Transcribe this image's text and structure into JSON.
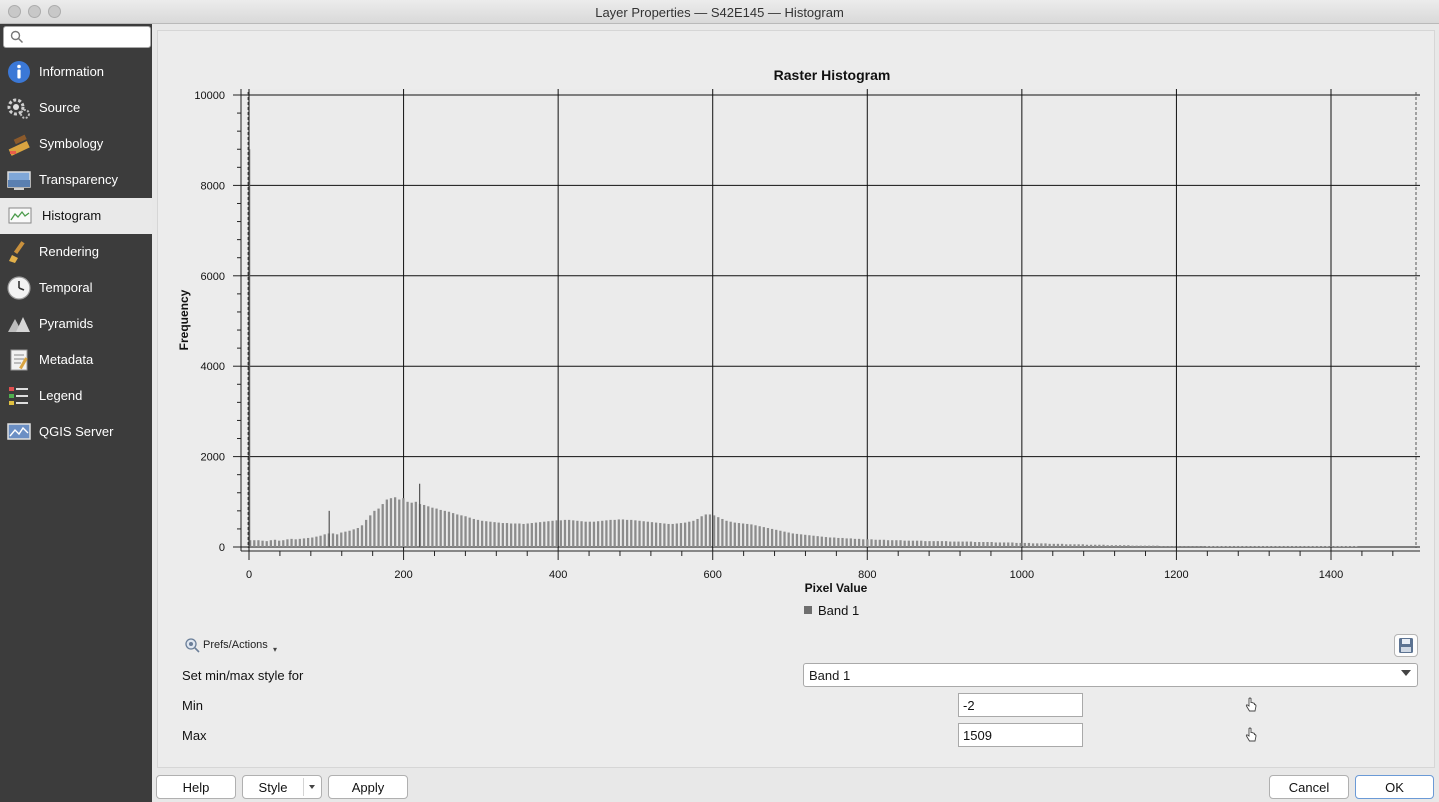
{
  "window": {
    "title": "Layer Properties — S42E145 — Histogram"
  },
  "search": {
    "placeholder": "",
    "value": ""
  },
  "sidebar": {
    "items": [
      {
        "label": "Information",
        "icon": "information-icon"
      },
      {
        "label": "Source",
        "icon": "source-icon"
      },
      {
        "label": "Symbology",
        "icon": "symbology-icon"
      },
      {
        "label": "Transparency",
        "icon": "transparency-icon"
      },
      {
        "label": "Histogram",
        "icon": "histogram-icon",
        "active": true
      },
      {
        "label": "Rendering",
        "icon": "rendering-icon"
      },
      {
        "label": "Temporal",
        "icon": "temporal-icon"
      },
      {
        "label": "Pyramids",
        "icon": "pyramids-icon"
      },
      {
        "label": "Metadata",
        "icon": "metadata-icon"
      },
      {
        "label": "Legend",
        "icon": "legend-icon"
      },
      {
        "label": "QGIS Server",
        "icon": "qgis-server-icon"
      }
    ]
  },
  "chart_data": {
    "type": "bar",
    "title": "Raster Histogram",
    "xlabel": "Pixel Value",
    "ylabel": "Frequency",
    "xlim": [
      -2,
      1509
    ],
    "ylim": [
      0,
      10000
    ],
    "xticks": [
      "0",
      "200",
      "400",
      "600",
      "800",
      "1000",
      "1200",
      "1400"
    ],
    "yticks": [
      "0",
      "2000",
      "4000",
      "6000",
      "8000",
      "10000"
    ],
    "grid": true,
    "legend_position": "bottom",
    "series": [
      {
        "name": "Band 1",
        "color": "#8c8c8c",
        "bin_start": 0,
        "bin_width": 5.36,
        "values": [
          150,
          150,
          150,
          140,
          130,
          150,
          160,
          140,
          150,
          170,
          180,
          170,
          180,
          190,
          200,
          210,
          230,
          250,
          280,
          300,
          300,
          280,
          320,
          340,
          360,
          390,
          420,
          480,
          600,
          700,
          800,
          850,
          950,
          1050,
          1080,
          1100,
          1050,
          1080,
          1000,
          980,
          1000,
          950,
          930,
          900,
          870,
          850,
          820,
          800,
          780,
          750,
          720,
          700,
          680,
          650,
          620,
          600,
          580,
          570,
          560,
          550,
          540,
          530,
          530,
          520,
          520,
          520,
          510,
          520,
          530,
          540,
          550,
          560,
          570,
          580,
          590,
          590,
          600,
          600,
          590,
          580,
          570,
          560,
          560,
          560,
          570,
          580,
          590,
          600,
          600,
          610,
          610,
          600,
          600,
          590,
          580,
          570,
          560,
          550,
          540,
          530,
          520,
          510,
          510,
          520,
          530,
          540,
          560,
          580,
          620,
          680,
          720,
          720,
          700,
          660,
          620,
          580,
          560,
          540,
          530,
          520,
          510,
          500,
          480,
          460,
          440,
          420,
          400,
          380,
          360,
          340,
          320,
          300,
          290,
          280,
          270,
          260,
          250,
          240,
          230,
          220,
          210,
          210,
          200,
          200,
          190,
          190,
          180,
          180,
          170,
          170,
          170,
          160,
          160,
          160,
          150,
          150,
          150,
          150,
          140,
          140,
          140,
          140,
          140,
          130,
          130,
          130,
          130,
          130,
          130,
          120,
          120,
          120,
          120,
          120,
          120,
          110,
          110,
          110,
          110,
          110,
          100,
          100,
          100,
          100,
          100,
          90,
          90,
          90,
          90,
          80,
          80,
          80,
          80,
          70,
          70,
          70,
          70,
          60,
          60,
          60,
          60,
          60,
          50,
          50,
          50,
          50,
          50,
          40,
          40,
          40,
          40,
          40,
          40,
          30,
          30,
          30,
          30,
          30,
          30,
          30,
          20,
          20,
          20,
          20,
          20,
          20,
          20,
          20,
          20,
          20,
          20,
          10,
          10,
          10,
          10,
          10,
          10,
          10,
          10,
          10,
          10,
          10,
          10,
          10,
          10,
          10,
          10,
          10,
          10,
          10,
          10,
          10,
          10,
          10,
          10,
          10,
          10,
          10,
          10,
          10,
          10,
          10,
          10,
          10,
          10,
          10,
          10,
          10
        ],
        "spikes": [
          {
            "x": 103,
            "y": 800
          },
          {
            "x": 220,
            "y": 1400
          },
          {
            "x": 0,
            "y": 8800
          }
        ]
      }
    ]
  },
  "prefs": {
    "label": "Prefs/Actions"
  },
  "form": {
    "minmax_label": "Set min/max style for",
    "band_value": "Band 1",
    "min_label": "Min",
    "min_value": "-2",
    "max_label": "Max",
    "max_value": "1509"
  },
  "buttons": {
    "help": "Help",
    "style": "Style",
    "apply": "Apply",
    "cancel": "Cancel",
    "ok": "OK"
  }
}
